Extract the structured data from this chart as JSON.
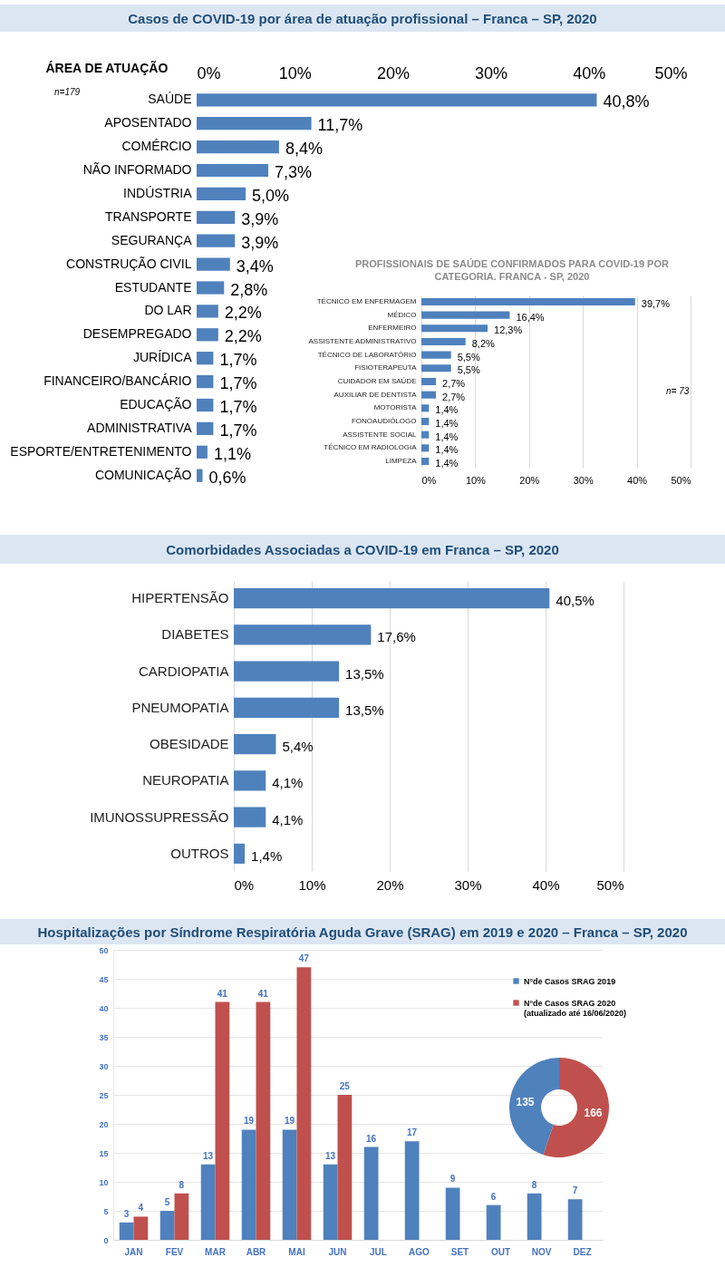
{
  "chart_data": [
    {
      "type": "bar",
      "orientation": "horizontal",
      "title": "Casos de COVID-19 por área de atuação profissional – Franca – SP, 2020",
      "ylabel": "ÁREA DE ATUAÇÃO",
      "categories": [
        "SAÚDE",
        "APOSENTADO",
        "COMÉRCIO",
        "NÃO INFORMADO",
        "INDÚSTRIA",
        "TRANSPORTE",
        "SEGURANÇA",
        "CONSTRUÇÃO CIVIL",
        "ESTUDANTE",
        "DO LAR",
        "DESEMPREGADO",
        "JURÍDICA",
        "FINANCEIRO/BANCÁRIO",
        "EDUCAÇÃO",
        "ADMINISTRATIVA",
        "ESPORTE/ENTRETENIMENTO",
        "COMUNICAÇÃO"
      ],
      "values": [
        40.8,
        11.7,
        8.4,
        7.3,
        5.0,
        3.9,
        3.9,
        3.4,
        2.8,
        2.2,
        2.2,
        1.7,
        1.7,
        1.7,
        1.7,
        1.1,
        0.6
      ],
      "value_labels": [
        "40,8%",
        "11,7%",
        "8,4%",
        "7,3%",
        "5,0%",
        "3,9%",
        "3,9%",
        "3,4%",
        "2,8%",
        "2,2%",
        "2,2%",
        "1,7%",
        "1,7%",
        "1,7%",
        "1,7%",
        "1,1%",
        "0,6%"
      ],
      "color": "#4f81bd",
      "xlim": [
        0,
        50
      ],
      "xticks": [
        {
          "value": 0,
          "label": "0%"
        },
        {
          "value": 10,
          "label": "10%"
        },
        {
          "value": 20,
          "label": "20%"
        },
        {
          "value": 30,
          "label": "30%"
        },
        {
          "value": 40,
          "label": "40%"
        },
        {
          "value": 50,
          "label": "50%"
        }
      ],
      "annotations": [
        "n=179"
      ]
    },
    {
      "type": "bar",
      "orientation": "horizontal",
      "title": "PROFISSIONAIS DE SAÚDE CONFIRMADOS PARA COVID-19 POR CATEGORIA.  FRANCA - SP, 2020",
      "categories": [
        "TÉCNICO EM ENFERMAGEM",
        "MÉDICO",
        "ENFERMEIRO",
        "ASSISTENTE ADMINISTRATIVO",
        "TÉCNICO DE LABORATÓRIO",
        "FISIOTERAPEUTA",
        "CUIDADOR EM SAÚDE",
        "AUXILIAR DE DENTISTA",
        "MOTORISTA",
        "FONOAUDIÓLOGO",
        "ASSISTENTE SOCIAL",
        "TÉCNICO EM RADIOLOGIA",
        "LIMPEZA"
      ],
      "values": [
        39.7,
        16.4,
        12.3,
        8.2,
        5.5,
        5.5,
        2.7,
        2.7,
        1.4,
        1.4,
        1.4,
        1.4,
        1.4
      ],
      "value_labels": [
        "39,7%",
        "16,4%",
        "12,3%",
        "8,2%",
        "5,5%",
        "5,5%",
        "2,7%",
        "2,7%",
        "1,4%",
        "1,4%",
        "1,4%",
        "1,4%",
        "1,4%"
      ],
      "color": "#4f81bd",
      "xlim": [
        0,
        50
      ],
      "xticks": [
        {
          "value": 0,
          "label": "0%"
        },
        {
          "value": 10,
          "label": "10%"
        },
        {
          "value": 20,
          "label": "20%"
        },
        {
          "value": 30,
          "label": "30%"
        },
        {
          "value": 40,
          "label": "40%"
        },
        {
          "value": 50,
          "label": "50%"
        }
      ],
      "grid": "x",
      "annotations": [
        "n= 73"
      ]
    },
    {
      "type": "bar",
      "orientation": "horizontal",
      "title": "Comorbidades Associadas a COVID-19 em Franca – SP, 2020",
      "categories": [
        "HIPERTENSÃO",
        "DIABETES",
        "CARDIOPATIA",
        "PNEUMOPATIA",
        "OBESIDADE",
        "NEUROPATIA",
        "IMUNOSSUPRESSÃO",
        "OUTROS"
      ],
      "values": [
        40.5,
        17.6,
        13.5,
        13.5,
        5.4,
        4.1,
        4.1,
        1.4
      ],
      "value_labels": [
        "40,5%",
        "17,6%",
        "13,5%",
        "13,5%",
        "5,4%",
        "4,1%",
        "4,1%",
        "1,4%"
      ],
      "color": "#4f81bd",
      "xlim": [
        0,
        50
      ],
      "xticks": [
        {
          "value": 0,
          "label": "0%"
        },
        {
          "value": 10,
          "label": "10%"
        },
        {
          "value": 20,
          "label": "20%"
        },
        {
          "value": 30,
          "label": "30%"
        },
        {
          "value": 40,
          "label": "40%"
        },
        {
          "value": 50,
          "label": "50%"
        }
      ],
      "grid": "x"
    },
    {
      "type": "bar",
      "title": "Hospitalizações por Síndrome Respiratória Aguda Grave (SRAG) em 2019 e 2020 – Franca – SP, 2020",
      "categories": [
        "JAN",
        "FEV",
        "MAR",
        "ABR",
        "MAI",
        "JUN",
        "JUL",
        "AGO",
        "SET",
        "OUT",
        "NOV",
        "DEZ"
      ],
      "series": [
        {
          "name": "N°de Casos SRAG 2019",
          "color": "#4f81bd",
          "values": [
            3,
            5,
            13,
            19,
            19,
            13,
            16,
            17,
            9,
            6,
            8,
            7
          ]
        },
        {
          "name": "N°de Casos SRAG 2020\n(atualizado até 16/06/2020)",
          "color": "#c0504d",
          "values": [
            4,
            8,
            41,
            41,
            47,
            25,
            null,
            null,
            null,
            null,
            null,
            null
          ]
        }
      ],
      "ylim": [
        0,
        50
      ],
      "yticks": [
        0,
        5,
        10,
        15,
        20,
        25,
        30,
        35,
        40,
        45,
        50
      ],
      "grid": "y",
      "data_labels": true,
      "legend": "top right"
    },
    {
      "type": "donut",
      "categories": [
        null,
        null
      ],
      "values": [
        166,
        135
      ],
      "colors": [
        "#c0504d",
        "#4f81bd"
      ],
      "data_labels": true
    }
  ]
}
